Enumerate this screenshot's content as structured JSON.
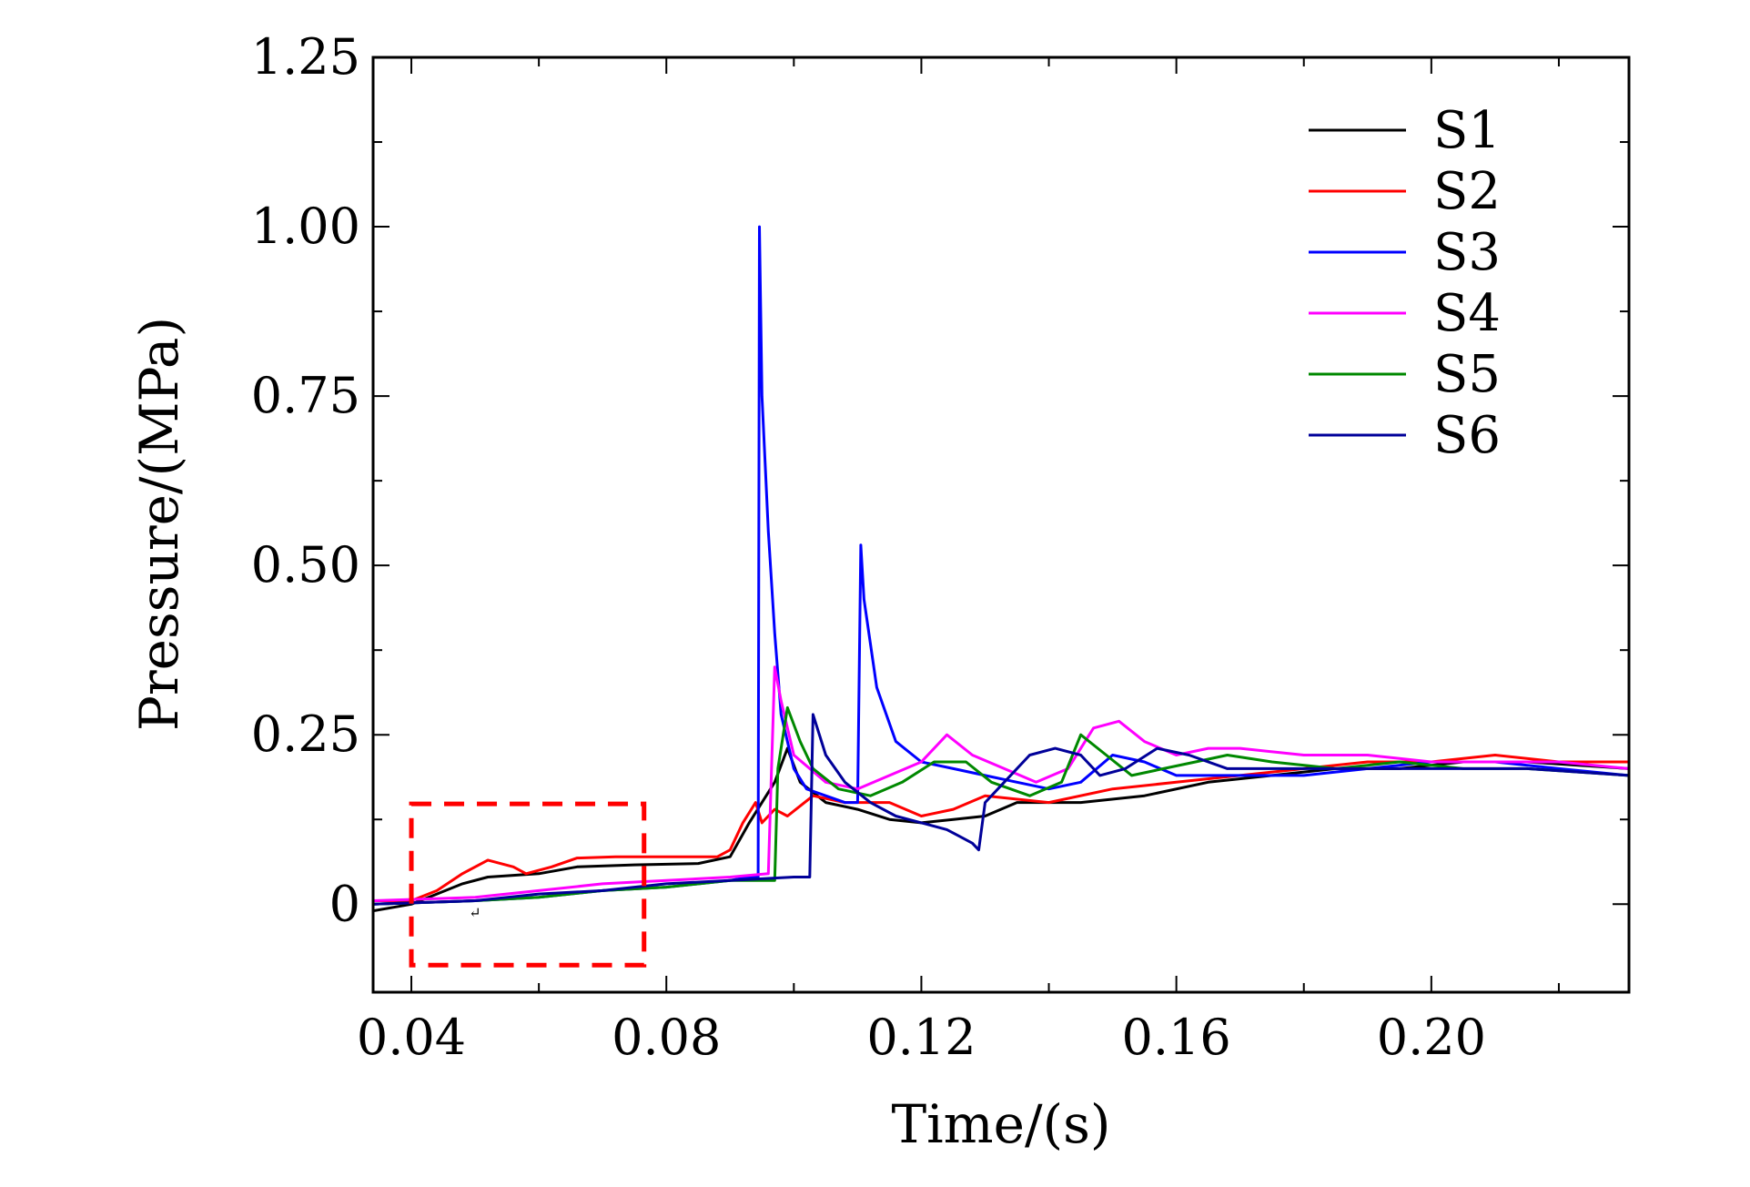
{
  "chart_data": {
    "type": "line",
    "title": "",
    "xlabel": "Time/(s)",
    "ylabel": "Pressure/(MPa)",
    "xlim": [
      0.034,
      0.231
    ],
    "ylim": [
      -0.13,
      1.25
    ],
    "xticks": [
      {
        "value": 0.04,
        "label": "0.04"
      },
      {
        "value": 0.08,
        "label": "0.08"
      },
      {
        "value": 0.12,
        "label": "0.12"
      },
      {
        "value": 0.16,
        "label": "0.16"
      },
      {
        "value": 0.2,
        "label": "0.20"
      }
    ],
    "yticks": [
      {
        "value": 0,
        "label": "0"
      },
      {
        "value": 0.25,
        "label": "0.25"
      },
      {
        "value": 0.5,
        "label": "0.50"
      },
      {
        "value": 0.75,
        "label": "0.75"
      },
      {
        "value": 1.0,
        "label": "1.00"
      },
      {
        "value": 1.25,
        "label": "1.25"
      }
    ],
    "x_minor_step": 0.02,
    "y_minor_step": 0.125,
    "legend_position": "top-right",
    "series": [
      {
        "name": "S1",
        "color": "#000000",
        "points": [
          [
            0.034,
            -0.01
          ],
          [
            0.04,
            0.0
          ],
          [
            0.044,
            0.015
          ],
          [
            0.048,
            0.03
          ],
          [
            0.052,
            0.04
          ],
          [
            0.06,
            0.045
          ],
          [
            0.066,
            0.055
          ],
          [
            0.075,
            0.058
          ],
          [
            0.085,
            0.06
          ],
          [
            0.09,
            0.07
          ],
          [
            0.093,
            0.12
          ],
          [
            0.095,
            0.15
          ],
          [
            0.097,
            0.18
          ],
          [
            0.099,
            0.23
          ],
          [
            0.101,
            0.18
          ],
          [
            0.105,
            0.15
          ],
          [
            0.11,
            0.14
          ],
          [
            0.115,
            0.125
          ],
          [
            0.12,
            0.12
          ],
          [
            0.125,
            0.125
          ],
          [
            0.13,
            0.13
          ],
          [
            0.135,
            0.15
          ],
          [
            0.145,
            0.15
          ],
          [
            0.155,
            0.16
          ],
          [
            0.165,
            0.18
          ],
          [
            0.175,
            0.19
          ],
          [
            0.185,
            0.2
          ],
          [
            0.195,
            0.2
          ],
          [
            0.205,
            0.21
          ],
          [
            0.215,
            0.21
          ],
          [
            0.231,
            0.2
          ]
        ]
      },
      {
        "name": "S2",
        "color": "#ff0000",
        "points": [
          [
            0.034,
            0.005
          ],
          [
            0.04,
            0.005
          ],
          [
            0.044,
            0.02
          ],
          [
            0.048,
            0.045
          ],
          [
            0.052,
            0.065
          ],
          [
            0.056,
            0.055
          ],
          [
            0.058,
            0.045
          ],
          [
            0.062,
            0.055
          ],
          [
            0.066,
            0.068
          ],
          [
            0.072,
            0.07
          ],
          [
            0.08,
            0.07
          ],
          [
            0.088,
            0.07
          ],
          [
            0.09,
            0.08
          ],
          [
            0.092,
            0.12
          ],
          [
            0.094,
            0.15
          ],
          [
            0.095,
            0.12
          ],
          [
            0.097,
            0.14
          ],
          [
            0.099,
            0.13
          ],
          [
            0.103,
            0.16
          ],
          [
            0.108,
            0.15
          ],
          [
            0.115,
            0.15
          ],
          [
            0.12,
            0.13
          ],
          [
            0.125,
            0.14
          ],
          [
            0.13,
            0.16
          ],
          [
            0.14,
            0.15
          ],
          [
            0.15,
            0.17
          ],
          [
            0.16,
            0.18
          ],
          [
            0.17,
            0.19
          ],
          [
            0.18,
            0.2
          ],
          [
            0.19,
            0.21
          ],
          [
            0.2,
            0.21
          ],
          [
            0.21,
            0.22
          ],
          [
            0.22,
            0.21
          ],
          [
            0.231,
            0.21
          ]
        ]
      },
      {
        "name": "S3",
        "color": "#0000ff",
        "points": [
          [
            0.034,
            0.0
          ],
          [
            0.05,
            0.005
          ],
          [
            0.06,
            0.01
          ],
          [
            0.07,
            0.02
          ],
          [
            0.08,
            0.025
          ],
          [
            0.09,
            0.035
          ],
          [
            0.093,
            0.04
          ],
          [
            0.0944,
            0.04
          ],
          [
            0.0946,
            1.0
          ],
          [
            0.095,
            0.75
          ],
          [
            0.096,
            0.55
          ],
          [
            0.097,
            0.4
          ],
          [
            0.098,
            0.28
          ],
          [
            0.1,
            0.2
          ],
          [
            0.102,
            0.17
          ],
          [
            0.105,
            0.16
          ],
          [
            0.108,
            0.15
          ],
          [
            0.11,
            0.15
          ],
          [
            0.1105,
            0.53
          ],
          [
            0.111,
            0.45
          ],
          [
            0.113,
            0.32
          ],
          [
            0.116,
            0.24
          ],
          [
            0.12,
            0.21
          ],
          [
            0.125,
            0.2
          ],
          [
            0.13,
            0.19
          ],
          [
            0.135,
            0.18
          ],
          [
            0.14,
            0.17
          ],
          [
            0.145,
            0.18
          ],
          [
            0.15,
            0.22
          ],
          [
            0.155,
            0.21
          ],
          [
            0.16,
            0.19
          ],
          [
            0.17,
            0.19
          ],
          [
            0.18,
            0.19
          ],
          [
            0.19,
            0.2
          ],
          [
            0.2,
            0.21
          ],
          [
            0.21,
            0.21
          ],
          [
            0.22,
            0.2
          ],
          [
            0.231,
            0.19
          ]
        ]
      },
      {
        "name": "S4",
        "color": "#ff00ff",
        "points": [
          [
            0.034,
            0.005
          ],
          [
            0.05,
            0.01
          ],
          [
            0.06,
            0.02
          ],
          [
            0.07,
            0.03
          ],
          [
            0.08,
            0.035
          ],
          [
            0.09,
            0.04
          ],
          [
            0.096,
            0.045
          ],
          [
            0.0965,
            0.2
          ],
          [
            0.097,
            0.35
          ],
          [
            0.098,
            0.3
          ],
          [
            0.1,
            0.22
          ],
          [
            0.105,
            0.18
          ],
          [
            0.11,
            0.17
          ],
          [
            0.115,
            0.19
          ],
          [
            0.12,
            0.21
          ],
          [
            0.124,
            0.25
          ],
          [
            0.128,
            0.22
          ],
          [
            0.133,
            0.2
          ],
          [
            0.138,
            0.18
          ],
          [
            0.143,
            0.2
          ],
          [
            0.147,
            0.26
          ],
          [
            0.151,
            0.27
          ],
          [
            0.155,
            0.24
          ],
          [
            0.16,
            0.22
          ],
          [
            0.165,
            0.23
          ],
          [
            0.17,
            0.23
          ],
          [
            0.18,
            0.22
          ],
          [
            0.19,
            0.22
          ],
          [
            0.2,
            0.21
          ],
          [
            0.21,
            0.21
          ],
          [
            0.22,
            0.21
          ],
          [
            0.231,
            0.2
          ]
        ]
      },
      {
        "name": "S5",
        "color": "#008800",
        "points": [
          [
            0.034,
            0.0
          ],
          [
            0.05,
            0.005
          ],
          [
            0.06,
            0.01
          ],
          [
            0.07,
            0.02
          ],
          [
            0.08,
            0.025
          ],
          [
            0.09,
            0.035
          ],
          [
            0.097,
            0.035
          ],
          [
            0.0975,
            0.2
          ],
          [
            0.099,
            0.29
          ],
          [
            0.101,
            0.24
          ],
          [
            0.103,
            0.2
          ],
          [
            0.107,
            0.17
          ],
          [
            0.112,
            0.16
          ],
          [
            0.117,
            0.18
          ],
          [
            0.122,
            0.21
          ],
          [
            0.127,
            0.21
          ],
          [
            0.131,
            0.18
          ],
          [
            0.137,
            0.16
          ],
          [
            0.142,
            0.18
          ],
          [
            0.145,
            0.25
          ],
          [
            0.149,
            0.22
          ],
          [
            0.153,
            0.19
          ],
          [
            0.158,
            0.2
          ],
          [
            0.163,
            0.21
          ],
          [
            0.168,
            0.22
          ],
          [
            0.175,
            0.21
          ],
          [
            0.185,
            0.2
          ],
          [
            0.195,
            0.21
          ],
          [
            0.205,
            0.2
          ],
          [
            0.215,
            0.2
          ],
          [
            0.231,
            0.19
          ]
        ]
      },
      {
        "name": "S6",
        "color": "#000099",
        "points": [
          [
            0.034,
            0.0
          ],
          [
            0.05,
            0.005
          ],
          [
            0.06,
            0.015
          ],
          [
            0.07,
            0.02
          ],
          [
            0.08,
            0.03
          ],
          [
            0.09,
            0.035
          ],
          [
            0.1,
            0.04
          ],
          [
            0.1025,
            0.04
          ],
          [
            0.103,
            0.28
          ],
          [
            0.105,
            0.22
          ],
          [
            0.108,
            0.18
          ],
          [
            0.112,
            0.15
          ],
          [
            0.116,
            0.13
          ],
          [
            0.12,
            0.12
          ],
          [
            0.124,
            0.11
          ],
          [
            0.126,
            0.1
          ],
          [
            0.128,
            0.09
          ],
          [
            0.129,
            0.08
          ],
          [
            0.13,
            0.15
          ],
          [
            0.133,
            0.18
          ],
          [
            0.137,
            0.22
          ],
          [
            0.141,
            0.23
          ],
          [
            0.145,
            0.22
          ],
          [
            0.148,
            0.19
          ],
          [
            0.152,
            0.2
          ],
          [
            0.157,
            0.23
          ],
          [
            0.162,
            0.22
          ],
          [
            0.168,
            0.2
          ],
          [
            0.175,
            0.2
          ],
          [
            0.185,
            0.2
          ],
          [
            0.195,
            0.2
          ],
          [
            0.205,
            0.2
          ],
          [
            0.215,
            0.2
          ],
          [
            0.231,
            0.19
          ]
        ]
      }
    ],
    "annotation": {
      "type": "dashed-rectangle",
      "color": "#ff0000",
      "x_range": [
        0.04,
        0.0765
      ],
      "y_range": [
        -0.09,
        0.148
      ],
      "note_glyph": "↵",
      "note_at": [
        0.049,
        -0.02
      ]
    }
  }
}
